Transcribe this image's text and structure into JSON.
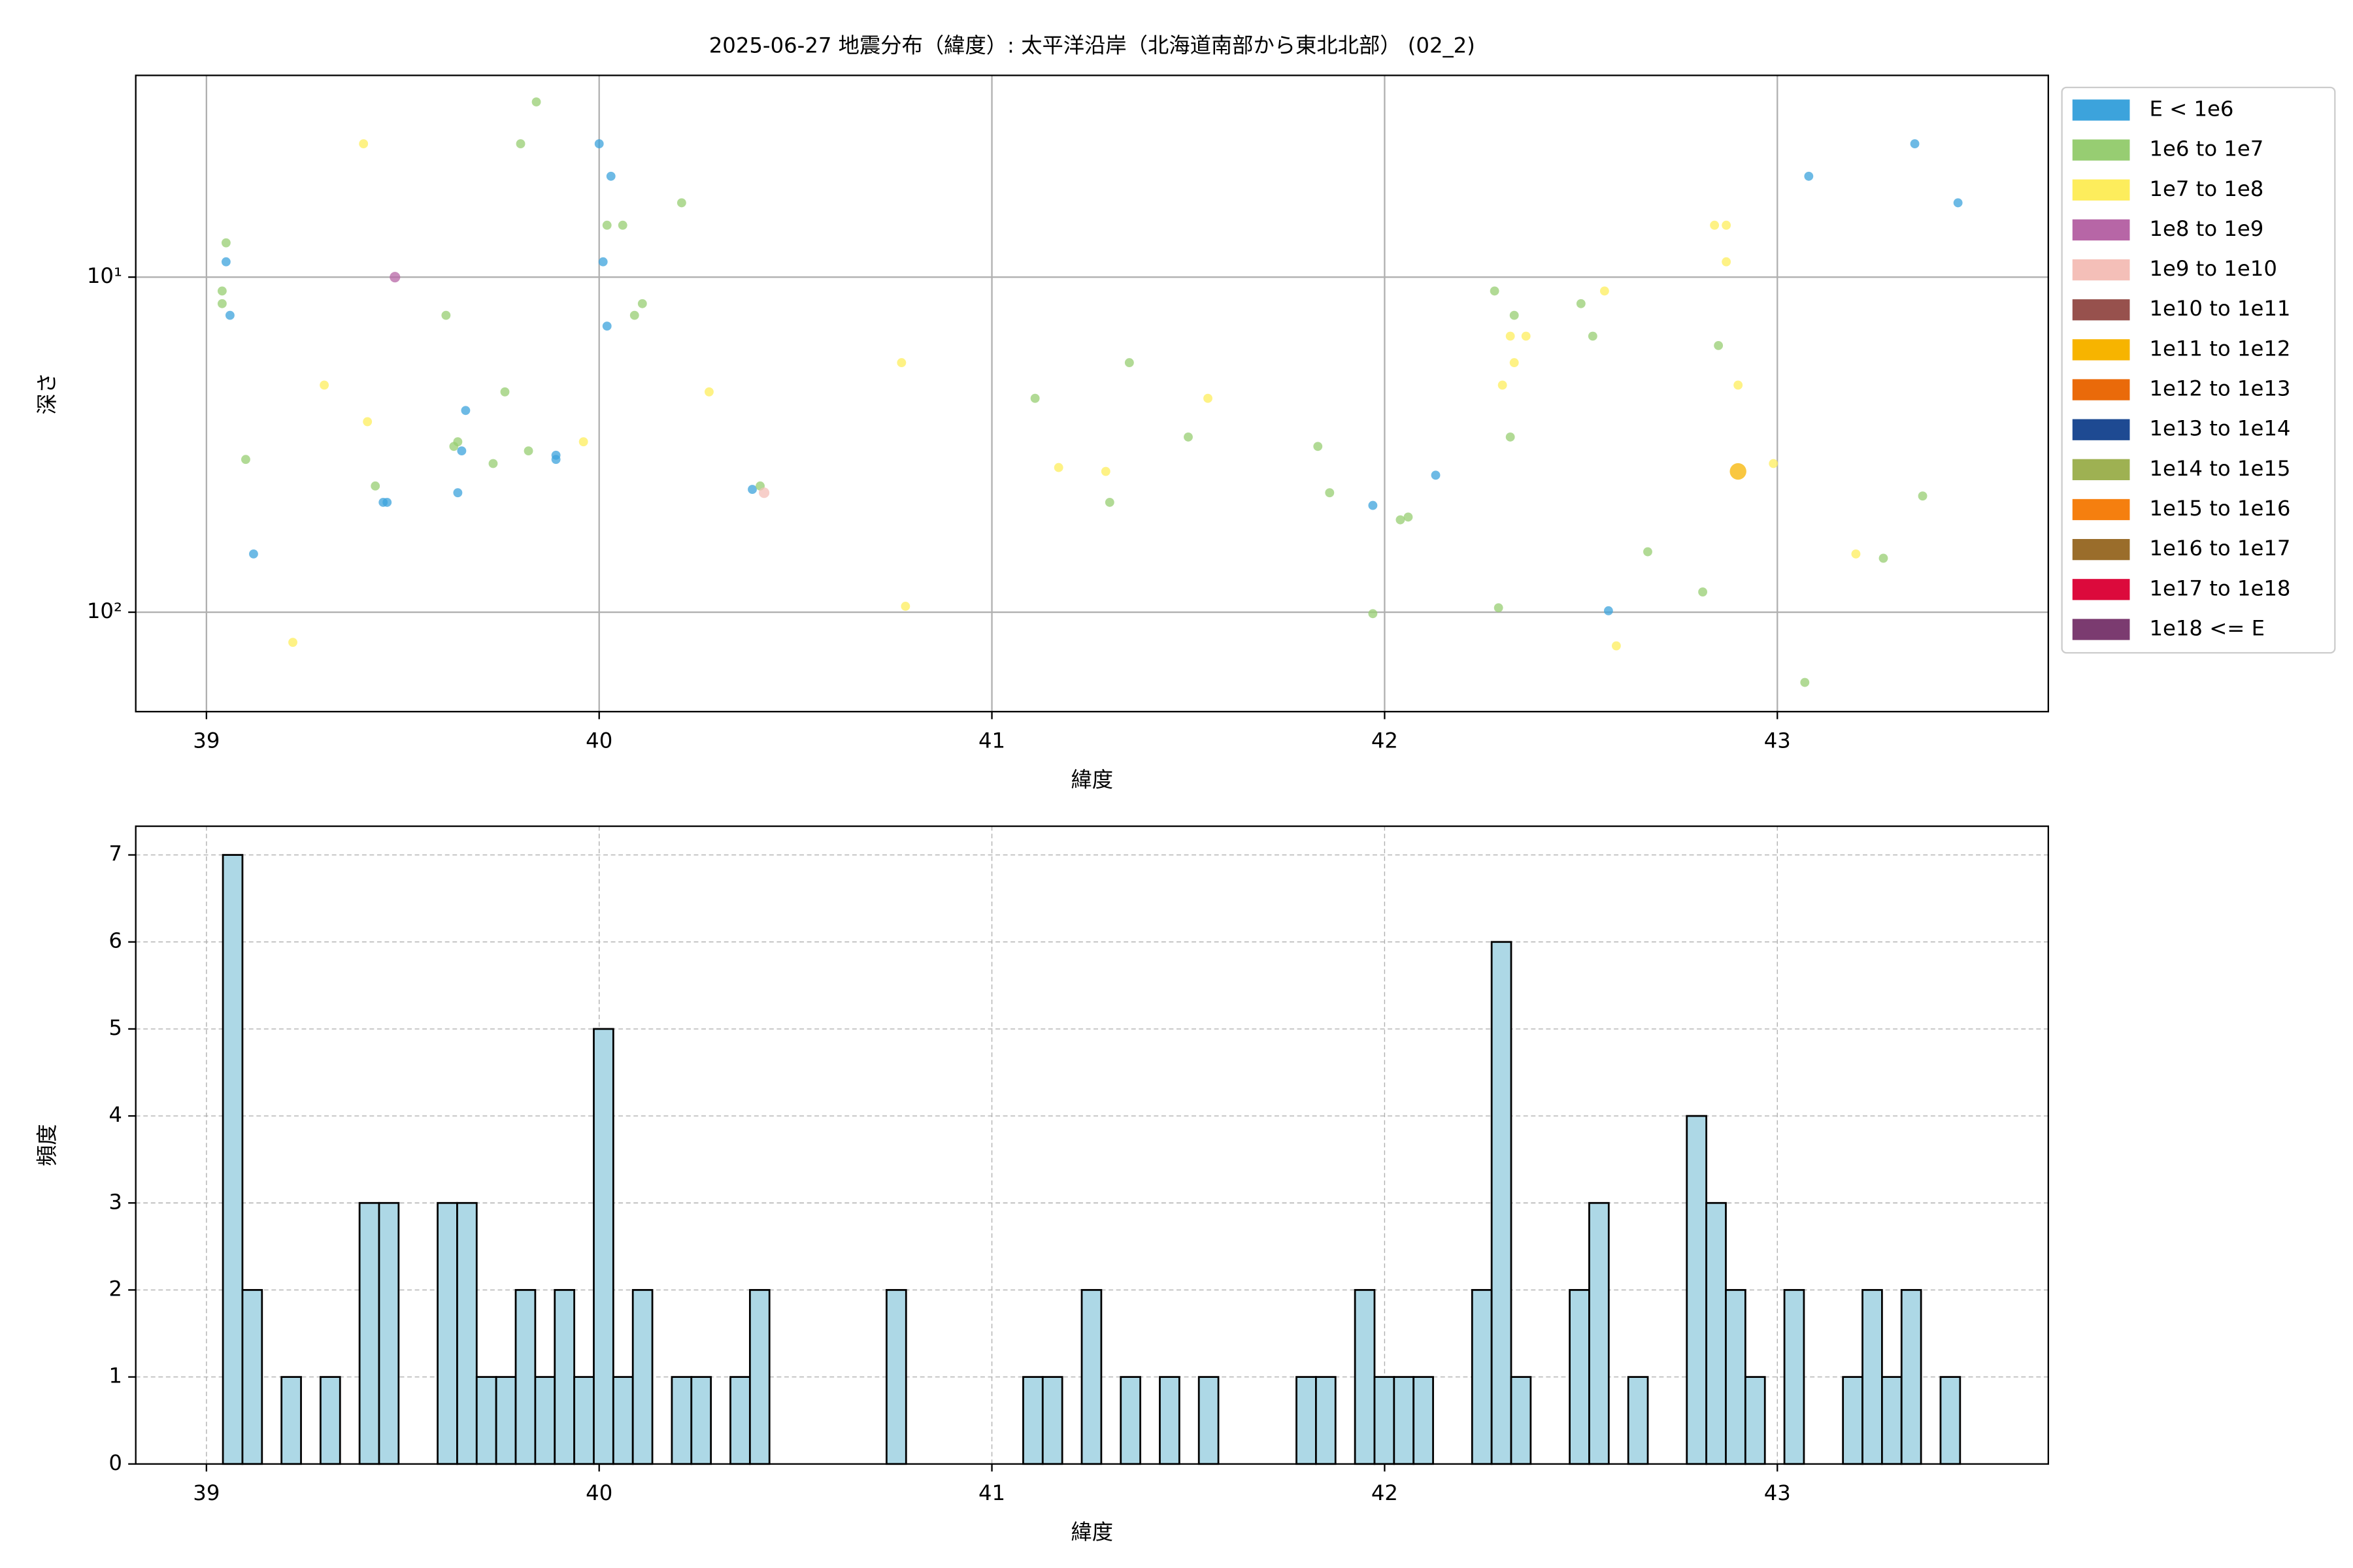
{
  "chart_data": [
    {
      "type": "scatter",
      "title": "2025-06-27 地震分布（緯度）: 太平洋沿岸（北海道南部から東北北部） (02_2)",
      "xlabel": "緯度",
      "ylabel": "深さ",
      "yscale": "log",
      "grid": true,
      "grid_style": "solid",
      "legend": "outside-right",
      "xlim": [
        38.82,
        43.69
      ],
      "ylim": [
        198,
        2.5
      ],
      "xticks": [
        39,
        40,
        41,
        42,
        43
      ],
      "yticks": [
        {
          "value": 10,
          "label": "10¹"
        },
        {
          "value": 100,
          "label": "10²"
        }
      ],
      "series": [
        {
          "name": "E < 1e6",
          "color": "#3ca3dc",
          "size": 3,
          "x": [
            39.05,
            39.06,
            39.12,
            39.45,
            39.46,
            39.66,
            39.65,
            39.64,
            39.89,
            39.89,
            40.0,
            40.03,
            40.01,
            40.02,
            40.39,
            41.97,
            42.13,
            42.57,
            43.08,
            43.35,
            43.46
          ],
          "values": [
            9.0,
            13,
            67,
            47,
            47,
            25,
            33,
            44,
            34,
            35,
            4.0,
            5.0,
            9.0,
            14,
            43,
            48,
            39,
            99,
            5.0,
            4.0,
            6.0
          ]
        },
        {
          "name": "1e6 to 1e7",
          "color": "#97cd72",
          "size": 3,
          "x": [
            39.05,
            39.04,
            39.04,
            39.1,
            39.43,
            39.61,
            39.63,
            39.64,
            39.73,
            39.76,
            39.82,
            39.8,
            39.84,
            40.02,
            40.06,
            40.09,
            40.11,
            40.21,
            40.41,
            41.11,
            41.35,
            41.5,
            41.3,
            41.83,
            41.86,
            41.97,
            42.04,
            42.06,
            42.28,
            42.33,
            42.32,
            42.29,
            42.5,
            42.53,
            42.67,
            42.81,
            42.85,
            43.27,
            43.37,
            43.07
          ],
          "values": [
            7.9,
            11,
            12,
            35,
            42,
            13,
            32,
            31,
            36,
            22,
            33,
            4.0,
            3.0,
            7.0,
            7.0,
            13,
            12,
            6.0,
            42,
            23,
            18,
            30,
            47,
            32,
            44,
            101,
            53,
            52,
            11,
            13,
            30,
            97,
            12,
            15,
            66,
            87,
            16,
            69,
            45,
            162
          ]
        },
        {
          "name": "1e7 to 1e8",
          "color": "#fded5c",
          "size": 3,
          "x": [
            39.4,
            39.3,
            39.41,
            39.22,
            39.96,
            40.28,
            40.77,
            40.78,
            41.17,
            41.29,
            41.55,
            42.56,
            42.32,
            42.36,
            42.33,
            42.3,
            42.84,
            42.87,
            42.87,
            42.9,
            42.99,
            42.59,
            43.2
          ],
          "values": [
            4.0,
            21,
            27,
            123,
            31,
            22,
            18,
            96,
            37,
            38,
            23,
            11,
            15,
            15,
            18,
            21,
            7.0,
            7.0,
            9.0,
            21,
            36,
            126,
            67
          ]
        },
        {
          "name": "1e8 to 1e9",
          "color": "#b766a6",
          "size": 3.5,
          "x": [
            39.48
          ],
          "values": [
            10
          ]
        },
        {
          "name": "1e9 to 1e10",
          "color": "#f4bfb8",
          "size": 3.5,
          "x": [
            40.42
          ],
          "values": [
            44
          ]
        },
        {
          "name": "1e10 to 1e11",
          "color": "#97514d",
          "size": 4,
          "x": [],
          "values": []
        },
        {
          "name": "1e11 to 1e12",
          "color": "#f7b400",
          "size": 5.5,
          "x": [
            42.9
          ],
          "values": [
            38
          ]
        },
        {
          "name": "1e12 to 1e13",
          "color": "#ea6a0a",
          "size": 6,
          "x": [],
          "values": []
        },
        {
          "name": "1e13 to 1e14",
          "color": "#1e4a92",
          "size": 6,
          "x": [],
          "values": []
        },
        {
          "name": "1e14 to 1e15",
          "color": "#9eb152",
          "size": 6,
          "x": [],
          "values": []
        },
        {
          "name": "1e15 to 1e16",
          "color": "#f57f0f",
          "size": 6,
          "x": [],
          "values": []
        },
        {
          "name": "1e16 to 1e17",
          "color": "#9a6d2b",
          "size": 6,
          "x": [],
          "values": []
        },
        {
          "name": "1e17 to 1e18",
          "color": "#dc0a3c",
          "size": 6,
          "x": [],
          "values": []
        },
        {
          "name": "1e18 <= E",
          "color": "#7b3b70",
          "size": 6,
          "x": [],
          "values": []
        }
      ]
    },
    {
      "type": "histogram",
      "xlabel": "緯度",
      "ylabel": "頻度",
      "grid": true,
      "grid_style": "dashed",
      "color": "#add8e6",
      "edgecolor": "#000000",
      "xlim": [
        38.82,
        43.69
      ],
      "ylim": [
        0,
        7.33
      ],
      "xticks": [
        39,
        40,
        41,
        42,
        43
      ],
      "yticks": [
        0,
        1,
        2,
        3,
        4,
        5,
        6,
        7
      ],
      "bins": [
        39.042,
        39.0917,
        39.1414,
        39.1911,
        39.2408,
        39.2905,
        39.3402,
        39.3899,
        39.4396,
        39.4893,
        39.539,
        39.5887,
        39.6384,
        39.6881,
        39.7378,
        39.7875,
        39.8372,
        39.8869,
        39.9366,
        39.9863,
        40.036,
        40.0857,
        40.1354,
        40.1851,
        40.2348,
        40.2845,
        40.3342,
        40.3839,
        40.4336,
        40.4833,
        40.533,
        40.5827,
        40.6324,
        40.6821,
        40.7318,
        40.7815,
        40.8312,
        40.8809,
        40.9306,
        40.9803,
        41.03,
        41.0797,
        41.1294,
        41.1791,
        41.2288,
        41.2785,
        41.3282,
        41.3779,
        41.4276,
        41.4773,
        41.527,
        41.5767,
        41.6264,
        41.6761,
        41.7258,
        41.7755,
        41.8252,
        41.8749,
        41.9246,
        41.9743,
        42.024,
        42.0737,
        42.1234,
        42.1731,
        42.2228,
        42.2725,
        42.3222,
        42.3719,
        42.4216,
        42.4713,
        42.521,
        42.5707,
        42.6204,
        42.6701,
        42.7198,
        42.7695,
        42.8192,
        42.8689,
        42.9186,
        42.9683,
        43.018,
        43.0677,
        43.1174,
        43.1671,
        43.2168,
        43.2665,
        43.3162,
        43.3659,
        43.4156,
        43.4653
      ],
      "values": [
        7,
        2,
        0,
        1,
        0,
        1,
        0,
        3,
        3,
        0,
        0,
        3,
        3,
        1,
        1,
        2,
        1,
        2,
        1,
        5,
        1,
        2,
        0,
        1,
        1,
        0,
        1,
        2,
        0,
        0,
        0,
        0,
        0,
        0,
        2,
        0,
        0,
        0,
        0,
        0,
        0,
        1,
        1,
        0,
        2,
        0,
        1,
        0,
        1,
        0,
        1,
        0,
        0,
        0,
        0,
        1,
        1,
        0,
        2,
        1,
        1,
        1,
        0,
        0,
        2,
        6,
        1,
        0,
        0,
        2,
        3,
        0,
        1,
        0,
        0,
        4,
        3,
        2,
        1,
        0,
        2,
        0,
        0,
        1,
        2,
        1,
        2,
        0,
        1
      ]
    }
  ]
}
